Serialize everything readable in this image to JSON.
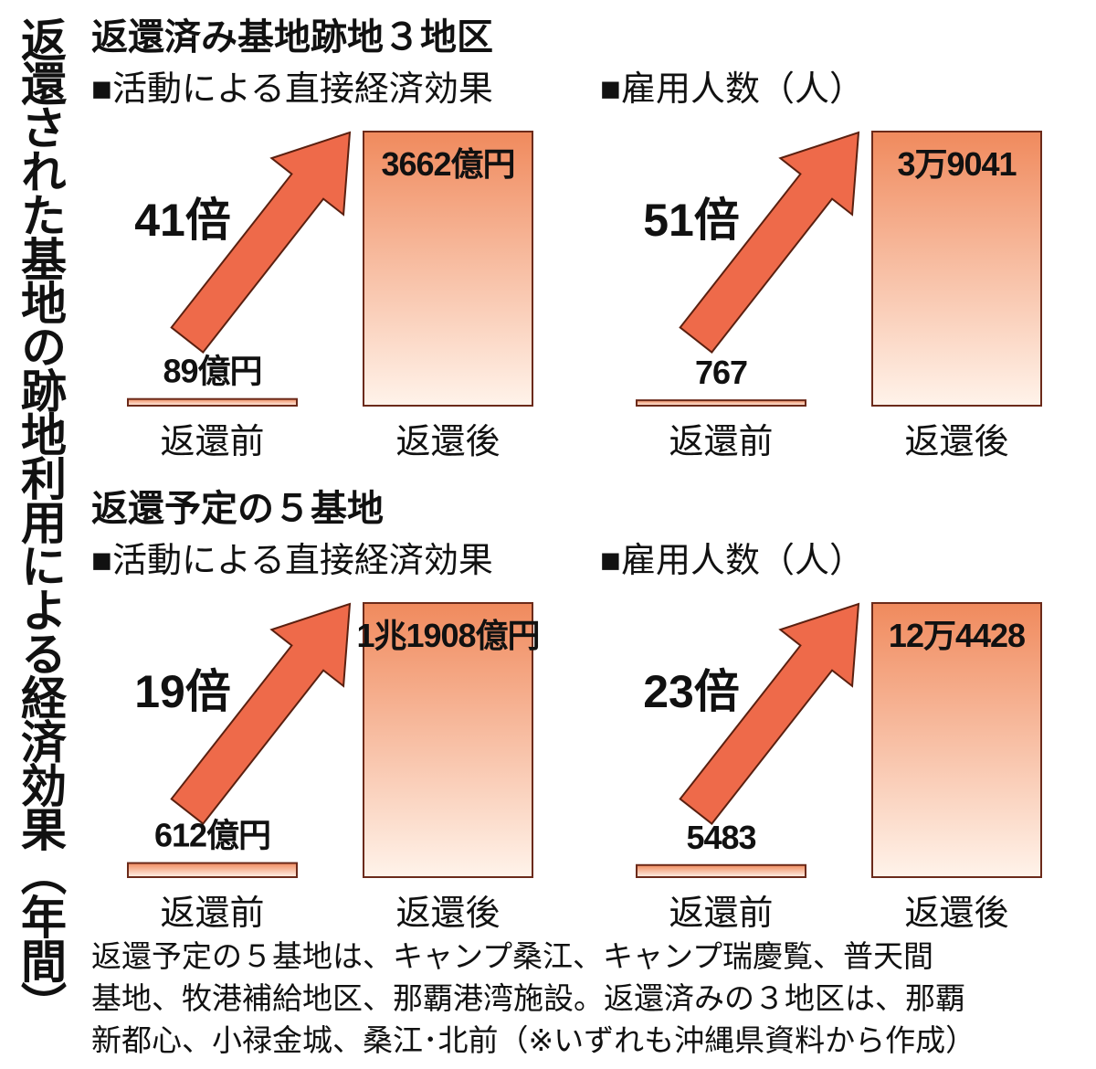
{
  "title": "返還された基地の跡地利用による経済効果（年間）",
  "sections": [
    {
      "heading": "返還済み基地跡地３地区"
    },
    {
      "heading": "返還予定の５基地"
    }
  ],
  "chart_data": [
    {
      "type": "bar",
      "title": "■活動による直接経済効果",
      "annotation": "41倍",
      "categories": [
        "返還前",
        "返還後"
      ],
      "values": [
        89,
        3662
      ],
      "value_labels": [
        "89億円",
        "3662億円"
      ],
      "color": "#f08a5d"
    },
    {
      "type": "bar",
      "title": "■雇用人数（人）",
      "annotation": "51倍",
      "categories": [
        "返還前",
        "返還後"
      ],
      "values": [
        767,
        39041
      ],
      "value_labels": [
        "767",
        "3万9041"
      ],
      "color": "#f08a5d"
    },
    {
      "type": "bar",
      "title": "■活動による直接経済効果",
      "annotation": "19倍",
      "categories": [
        "返還前",
        "返還後"
      ],
      "values": [
        612,
        11908
      ],
      "value_labels": [
        "612億円",
        "1兆1908億円"
      ],
      "color": "#f08a5d"
    },
    {
      "type": "bar",
      "title": "■雇用人数（人）",
      "annotation": "23倍",
      "categories": [
        "返還前",
        "返還後"
      ],
      "values": [
        5483,
        124428
      ],
      "value_labels": [
        "5483",
        "12万4428"
      ],
      "color": "#f08a5d"
    }
  ],
  "note": [
    "返還予定の５基地は、キャンプ桑江、キャンプ瑞慶覧、普天間",
    "基地、牧港補給地区、那覇港湾施設。返還済みの３地区は、那覇",
    "新都心、小禄金城、桑江･北前（※いずれも沖縄県資料から作成）"
  ]
}
